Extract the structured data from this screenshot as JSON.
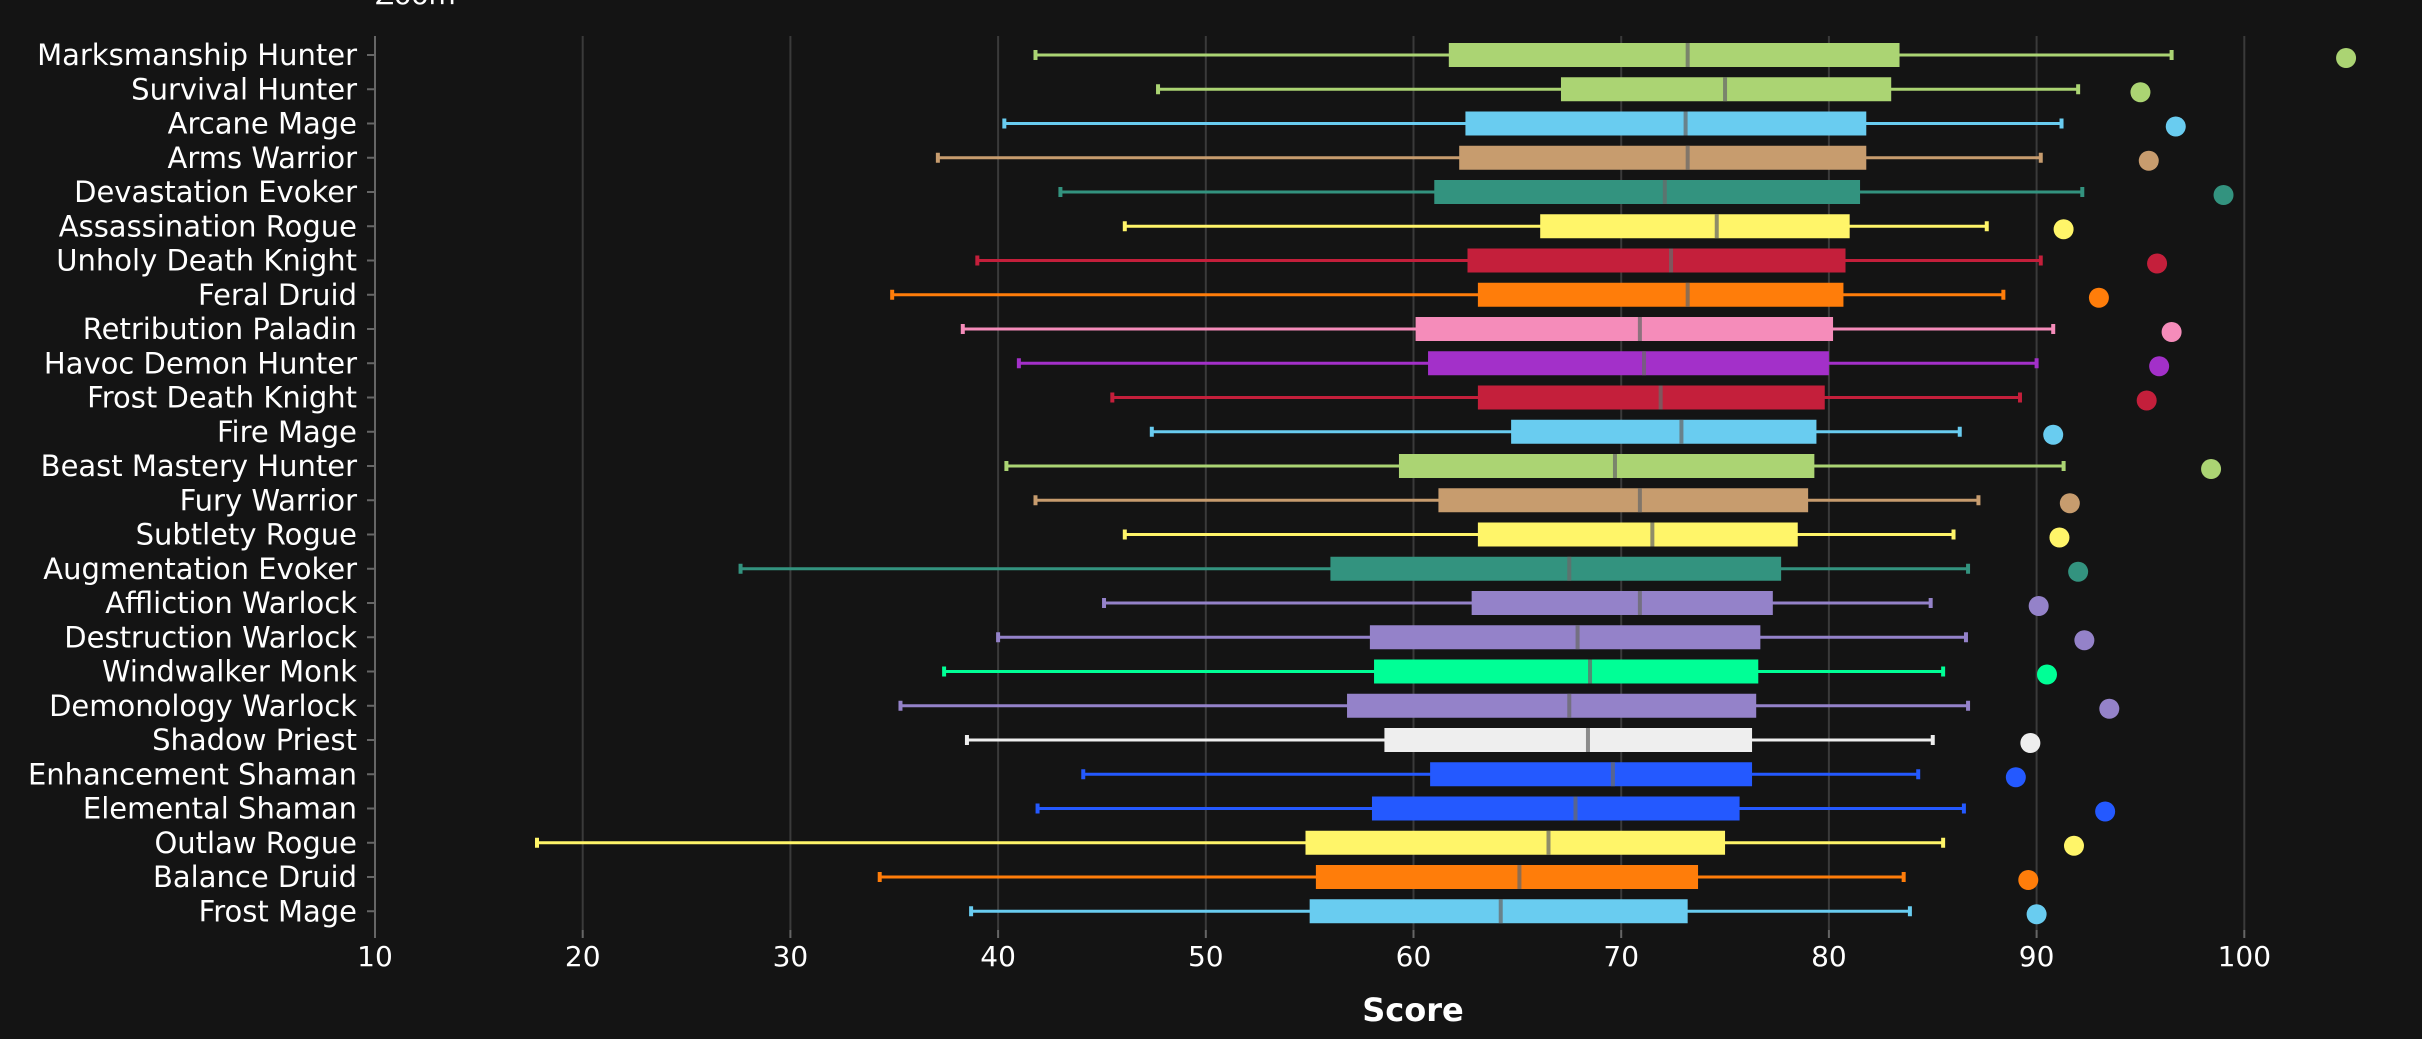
{
  "chart_data": {
    "type": "box",
    "orientation": "horizontal",
    "title": "",
    "zoom_label": "Zoom",
    "xlabel": "Score",
    "ylabel": "",
    "xlim": [
      10,
      104
    ],
    "xticks": [
      10,
      20,
      30,
      40,
      50,
      60,
      70,
      80,
      90,
      100
    ],
    "grid": true,
    "background": "#141414",
    "categories": [
      "Marksmanship Hunter",
      "Survival Hunter",
      "Arcane Mage",
      "Arms Warrior",
      "Devastation Evoker",
      "Assassination Rogue",
      "Unholy Death Knight",
      "Feral Druid",
      "Retribution Paladin",
      "Havoc Demon Hunter",
      "Frost Death Knight",
      "Fire Mage",
      "Beast Mastery Hunter",
      "Fury Warrior",
      "Subtlety Rogue",
      "Augmentation Evoker",
      "Affliction Warlock",
      "Destruction Warlock",
      "Windwalker Monk",
      "Demonology Warlock",
      "Shadow Priest",
      "Enhancement Shaman",
      "Elemental Shaman",
      "Outlaw Rogue",
      "Balance Druid",
      "Frost Mage"
    ],
    "series": [
      {
        "name": "Marksmanship Hunter",
        "color": "#abd473",
        "min": 41.8,
        "q1": 61.7,
        "median": 73.2,
        "q3": 83.4,
        "max": 96.5,
        "top": 104.9
      },
      {
        "name": "Survival Hunter",
        "color": "#abd473",
        "min": 47.7,
        "q1": 67.1,
        "median": 75.0,
        "q3": 83.0,
        "max": 92.0,
        "top": 95.0
      },
      {
        "name": "Arcane Mage",
        "color": "#69ccf0",
        "min": 40.3,
        "q1": 62.5,
        "median": 73.1,
        "q3": 81.8,
        "max": 91.2,
        "top": 96.7
      },
      {
        "name": "Arms Warrior",
        "color": "#c79c6e",
        "min": 37.1,
        "q1": 62.2,
        "median": 73.2,
        "q3": 81.8,
        "max": 90.2,
        "top": 95.4
      },
      {
        "name": "Devastation Evoker",
        "color": "#33937f",
        "min": 43.0,
        "q1": 61.0,
        "median": 72.1,
        "q3": 81.5,
        "max": 92.2,
        "top": 99.0
      },
      {
        "name": "Assassination Rogue",
        "color": "#fff569",
        "min": 46.1,
        "q1": 66.1,
        "median": 74.6,
        "q3": 81.0,
        "max": 87.6,
        "top": 91.3
      },
      {
        "name": "Unholy Death Knight",
        "color": "#c41f3b",
        "min": 39.0,
        "q1": 62.6,
        "median": 72.4,
        "q3": 80.8,
        "max": 90.2,
        "top": 95.8
      },
      {
        "name": "Feral Druid",
        "color": "#ff7d0a",
        "min": 34.9,
        "q1": 63.1,
        "median": 73.2,
        "q3": 80.7,
        "max": 88.4,
        "top": 93.0
      },
      {
        "name": "Retribution Paladin",
        "color": "#f58cba",
        "min": 38.3,
        "q1": 60.1,
        "median": 70.9,
        "q3": 80.2,
        "max": 90.8,
        "top": 96.5
      },
      {
        "name": "Havoc Demon Hunter",
        "color": "#a330c9",
        "min": 41.0,
        "q1": 60.7,
        "median": 71.1,
        "q3": 80.0,
        "max": 90.0,
        "top": 95.9
      },
      {
        "name": "Frost Death Knight",
        "color": "#c41f3b",
        "min": 45.5,
        "q1": 63.1,
        "median": 71.9,
        "q3": 79.8,
        "max": 89.2,
        "top": 95.3
      },
      {
        "name": "Fire Mage",
        "color": "#69ccf0",
        "min": 47.4,
        "q1": 64.7,
        "median": 72.9,
        "q3": 79.4,
        "max": 86.3,
        "top": 90.8
      },
      {
        "name": "Beast Mastery Hunter",
        "color": "#abd473",
        "min": 40.4,
        "q1": 59.3,
        "median": 69.7,
        "q3": 79.3,
        "max": 91.3,
        "top": 98.4
      },
      {
        "name": "Fury Warrior",
        "color": "#c79c6e",
        "min": 41.8,
        "q1": 61.2,
        "median": 70.9,
        "q3": 79.0,
        "max": 87.2,
        "top": 91.6
      },
      {
        "name": "Subtlety Rogue",
        "color": "#fff569",
        "min": 46.1,
        "q1": 63.1,
        "median": 71.5,
        "q3": 78.5,
        "max": 86.0,
        "top": 91.1
      },
      {
        "name": "Augmentation Evoker",
        "color": "#33937f",
        "min": 27.6,
        "q1": 56.0,
        "median": 67.5,
        "q3": 77.7,
        "max": 86.7,
        "top": 92.0
      },
      {
        "name": "Affliction Warlock",
        "color": "#9482c9",
        "min": 45.1,
        "q1": 62.8,
        "median": 70.9,
        "q3": 77.3,
        "max": 84.9,
        "top": 90.1
      },
      {
        "name": "Destruction Warlock",
        "color": "#9482c9",
        "min": 40.0,
        "q1": 57.9,
        "median": 67.9,
        "q3": 76.7,
        "max": 86.6,
        "top": 92.3
      },
      {
        "name": "Windwalker Monk",
        "color": "#00ff96",
        "min": 37.4,
        "q1": 58.1,
        "median": 68.5,
        "q3": 76.6,
        "max": 85.5,
        "top": 90.5
      },
      {
        "name": "Demonology Warlock",
        "color": "#9482c9",
        "min": 35.3,
        "q1": 56.8,
        "median": 67.5,
        "q3": 76.5,
        "max": 86.7,
        "top": 93.5
      },
      {
        "name": "Shadow Priest",
        "color": "#eeeeee",
        "min": 38.5,
        "q1": 58.6,
        "median": 68.4,
        "q3": 76.3,
        "max": 85.0,
        "top": 89.7
      },
      {
        "name": "Enhancement Shaman",
        "color": "#2459ff",
        "min": 44.1,
        "q1": 60.8,
        "median": 69.6,
        "q3": 76.3,
        "max": 84.3,
        "top": 89.0
      },
      {
        "name": "Elemental Shaman",
        "color": "#2459ff",
        "min": 41.9,
        "q1": 58.0,
        "median": 67.8,
        "q3": 75.7,
        "max": 86.5,
        "top": 93.3
      },
      {
        "name": "Outlaw Rogue",
        "color": "#fff569",
        "min": 17.8,
        "q1": 54.8,
        "median": 66.5,
        "q3": 75.0,
        "max": 85.5,
        "top": 91.8
      },
      {
        "name": "Balance Druid",
        "color": "#ff7d0a",
        "min": 34.3,
        "q1": 55.3,
        "median": 65.1,
        "q3": 73.7,
        "max": 83.6,
        "top": 89.6
      },
      {
        "name": "Frost Mage",
        "color": "#69ccf0",
        "min": 38.7,
        "q1": 55.0,
        "median": 64.2,
        "q3": 73.2,
        "max": 83.9,
        "top": 90.0
      }
    ]
  }
}
